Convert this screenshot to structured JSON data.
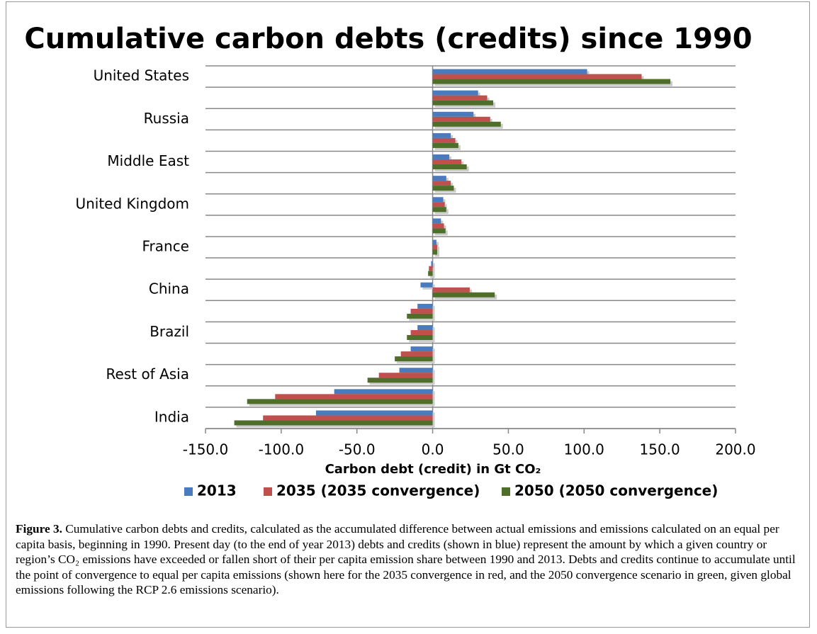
{
  "chart_data": {
    "type": "hbar",
    "title": "Cumulative carbon debts (credits) since 1990",
    "x_label": "Carbon debt (credit) in Gt CO₂",
    "categories": [
      "United States",
      null,
      "Russia",
      null,
      "Middle East",
      null,
      "United Kingdom",
      null,
      "France",
      null,
      "China",
      null,
      "Brazil",
      null,
      "Rest of Asia",
      null,
      "India"
    ],
    "series": [
      {
        "name": "2013",
        "color": "#4a7bbf",
        "values": [
          102,
          30,
          27,
          12,
          11,
          9,
          7,
          5.5,
          2.5,
          -1,
          -8,
          -10,
          -10,
          -14.5,
          -22,
          -65,
          -77
        ]
      },
      {
        "name": "2035 (2035 convergence)",
        "color": "#c0504d",
        "values": [
          138,
          36,
          38,
          15,
          19,
          12,
          8,
          7.5,
          3,
          -2.5,
          24.5,
          -14.5,
          -14.5,
          -21,
          -35.5,
          -104,
          -112
        ]
      },
      {
        "name": "2050 (2050 convergence)",
        "color": "#4e6e2a",
        "values": [
          157,
          40,
          45,
          17,
          22.5,
          14,
          9,
          8.5,
          3,
          -3,
          41,
          -17,
          -17,
          -25,
          -43,
          -122.5,
          -131
        ]
      }
    ],
    "xlim": [
      -150,
      200
    ],
    "xticks": [
      {
        "value": -150,
        "label": "-150.0"
      },
      {
        "value": -100,
        "label": "-100.0"
      },
      {
        "value": -50,
        "label": "-50.0"
      },
      {
        "value": 0,
        "label": "0.0"
      },
      {
        "value": 50,
        "label": "50.0"
      },
      {
        "value": 100,
        "label": "100.0"
      },
      {
        "value": 150,
        "label": "150.0"
      },
      {
        "value": 200,
        "label": "200.0"
      }
    ],
    "legend": "bottom"
  },
  "figure": {
    "label": "Figure 3.",
    "caption": "Cumulative carbon debts and credits, calculated as the accumulated difference between actual emissions and emissions calculated on an equal per capita basis, beginning in 1990. Present day (to the end of year 2013) debts and credits (shown in blue) represent the amount by which a given country or region’s CO₂ emissions have exceeded or fallen short of their per capita emission share between 1990 and 2013. Debts and credits continue to accumulate until the point of convergence to equal per capita emissions (shown here for the 2035 convergence in red, and the 2050 convergence scenario in green, given global emissions following the RCP 2.6 emissions scenario)."
  }
}
